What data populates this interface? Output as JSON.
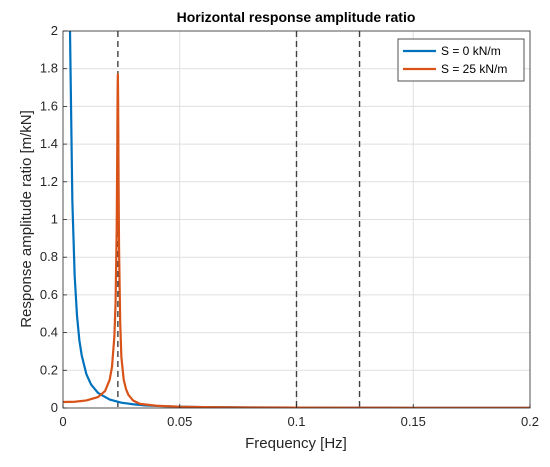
{
  "chart_data": {
    "type": "line",
    "title": "Horizontal response amplitude ratio",
    "xlabel": "Frequency [Hz]",
    "ylabel": "Response amplitude ratio [m/kN]",
    "xlim": [
      0,
      0.2
    ],
    "ylim": [
      0,
      2
    ],
    "xticks": [
      0,
      0.05,
      0.1,
      0.15,
      0.2
    ],
    "xtick_labels": [
      "0",
      "0.05",
      "0.1",
      "0.15",
      "0.2"
    ],
    "yticks": [
      0,
      0.2,
      0.4,
      0.6,
      0.8,
      1,
      1.2,
      1.4,
      1.6,
      1.8,
      2
    ],
    "ytick_labels": [
      "0",
      "0.2",
      "0.4",
      "0.6",
      "0.8",
      "1",
      "1.2",
      "1.4",
      "1.6",
      "1.8",
      "2"
    ],
    "grid": true,
    "legend_position": "top-right",
    "vertical_dashed_lines": [
      0.0235,
      0.1,
      0.127
    ],
    "series": [
      {
        "name": "S = 0 kN/m",
        "color": "#0072BD",
        "x": [
          0.003,
          0.004,
          0.005,
          0.006,
          0.007,
          0.008,
          0.01,
          0.012,
          0.015,
          0.02,
          0.025,
          0.03,
          0.035,
          0.04,
          0.05,
          0.06,
          0.08,
          0.1,
          0.12,
          0.15,
          0.2
        ],
        "y": [
          2.0,
          1.1,
          0.7,
          0.49,
          0.36,
          0.28,
          0.18,
          0.125,
          0.08,
          0.045,
          0.028,
          0.02,
          0.014,
          0.011,
          0.007,
          0.005,
          0.003,
          0.002,
          0.0015,
          0.001,
          0.0005
        ]
      },
      {
        "name": "S = 25 kN/m",
        "color": "#D95319",
        "x": [
          0,
          0.005,
          0.01,
          0.015,
          0.018,
          0.02,
          0.021,
          0.022,
          0.0225,
          0.023,
          0.0232,
          0.0234,
          0.0235,
          0.0236,
          0.0238,
          0.024,
          0.0245,
          0.025,
          0.026,
          0.027,
          0.028,
          0.03,
          0.033,
          0.04,
          0.05,
          0.06,
          0.08,
          0.1,
          0.12,
          0.15,
          0.2
        ],
        "y": [
          0.032,
          0.033,
          0.04,
          0.058,
          0.09,
          0.15,
          0.22,
          0.38,
          0.55,
          0.95,
          1.3,
          1.7,
          1.77,
          1.65,
          1.2,
          0.85,
          0.45,
          0.27,
          0.15,
          0.1,
          0.07,
          0.04,
          0.022,
          0.012,
          0.007,
          0.005,
          0.003,
          0.002,
          0.0015,
          0.001,
          0.0005
        ]
      }
    ]
  }
}
